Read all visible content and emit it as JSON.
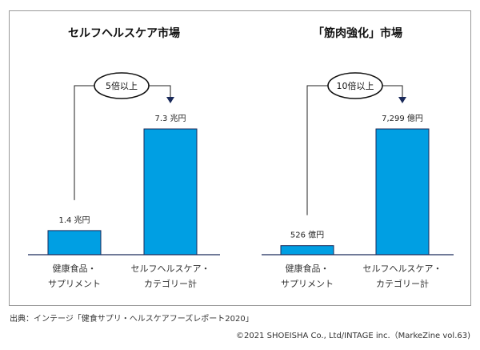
{
  "chart_data": [
    {
      "type": "bar",
      "title": "セルフヘルスケア市場",
      "categories": [
        [
          "健康食品・",
          "サプリメント"
        ],
        [
          "セルフヘルスケア・",
          "カテゴリー計"
        ]
      ],
      "values": [
        1.4,
        7.3
      ],
      "value_labels": [
        "1.4 兆円",
        "7.3 兆円"
      ],
      "unit": "兆円",
      "annotation": "5倍以上",
      "bar_color": "#009fe3",
      "grid": false
    },
    {
      "type": "bar",
      "title": "「筋肉強化」市場",
      "categories": [
        [
          "健康食品・",
          "サプリメント"
        ],
        [
          "セルフヘルスケア・",
          "カテゴリー計"
        ]
      ],
      "values": [
        526,
        7299
      ],
      "value_labels": [
        "526 億円",
        "7,299 億円"
      ],
      "unit": "億円",
      "annotation": "10倍以上",
      "bar_color": "#009fe3",
      "grid": false
    }
  ],
  "footer": {
    "source": "出典：インテージ「健食サプリ・ヘルスケアフーズレポート2020」",
    "copyright": "©2021 SHOEISHA Co., Ltd/INTAGE inc.（MarkeZine vol.63)"
  }
}
